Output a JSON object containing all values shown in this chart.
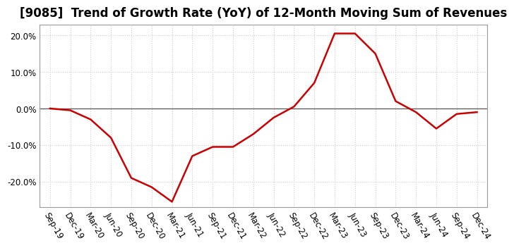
{
  "title": "[9085]  Trend of Growth Rate (YoY) of 12-Month Moving Sum of Revenues",
  "x_labels": [
    "Sep-19",
    "Dec-19",
    "Mar-20",
    "Jun-20",
    "Sep-20",
    "Dec-20",
    "Mar-21",
    "Jun-21",
    "Sep-21",
    "Dec-21",
    "Mar-22",
    "Jun-22",
    "Sep-22",
    "Dec-22",
    "Mar-23",
    "Jun-23",
    "Sep-23",
    "Dec-23",
    "Mar-24",
    "Jun-24",
    "Sep-24",
    "Dec-24"
  ],
  "y_values": [
    0.0,
    -0.5,
    -3.0,
    -8.0,
    -19.0,
    -21.5,
    -25.5,
    -13.0,
    -10.5,
    -10.5,
    -7.0,
    -2.5,
    0.5,
    7.0,
    20.5,
    20.5,
    15.0,
    2.0,
    -1.0,
    -5.5,
    -1.5,
    -1.0
  ],
  "line_color": "#cc0000",
  "line_width": 1.8,
  "ylim": [
    -27,
    23
  ],
  "yticks": [
    -20,
    -10,
    0,
    10,
    20
  ],
  "grid_color": "#cccccc",
  "background_color": "#ffffff",
  "zero_line_color": "#555555",
  "title_fontsize": 12,
  "tick_fontsize": 8.5,
  "spine_color": "#999999"
}
